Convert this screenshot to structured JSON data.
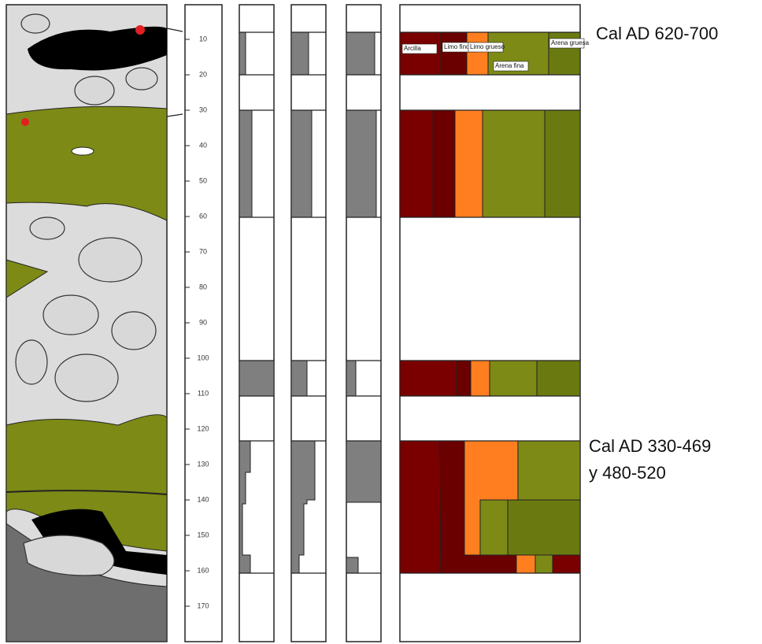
{
  "annotations": {
    "date_upper": "Cal AD 620-700",
    "date_lower_1": "Cal AD 330-469",
    "date_lower_2": "y 480-520"
  },
  "depth_scale": {
    "ticks": [
      10,
      20,
      30,
      40,
      50,
      60,
      70,
      80,
      90,
      100,
      110,
      120,
      130,
      140,
      150,
      160,
      170
    ]
  },
  "legend": {
    "labels": [
      "Arcilla",
      "Limo fino",
      "Limo grueso",
      "Arena fina",
      "Arena gruesa"
    ]
  }
}
